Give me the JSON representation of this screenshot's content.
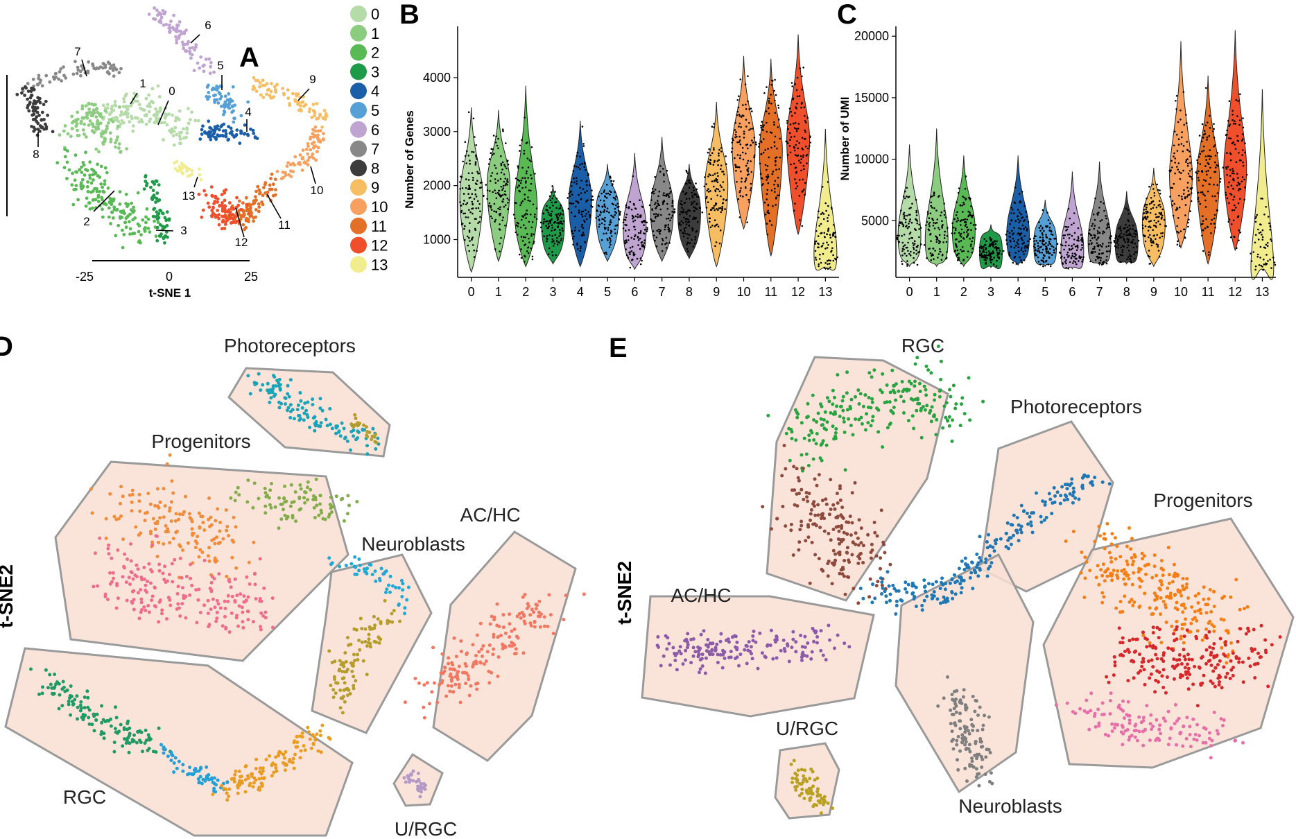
{
  "panels": {
    "A": "A",
    "B": "B",
    "C": "C",
    "D": "D",
    "E": "E"
  },
  "chart_data": [
    {
      "panel": "A",
      "type": "scatter",
      "xlabel": "t-SNE 1",
      "xticks": [
        -25,
        0,
        25
      ],
      "legend_placement": "right",
      "clusters": [
        {
          "id": "0",
          "color": "#b5dba8"
        },
        {
          "id": "1",
          "color": "#8ccc80"
        },
        {
          "id": "2",
          "color": "#58b955"
        },
        {
          "id": "3",
          "color": "#1f9a48"
        },
        {
          "id": "4",
          "color": "#1b5ea8"
        },
        {
          "id": "5",
          "color": "#57a0d6"
        },
        {
          "id": "6",
          "color": "#bfa3d1"
        },
        {
          "id": "7",
          "color": "#888888"
        },
        {
          "id": "8",
          "color": "#3c3c3c"
        },
        {
          "id": "9",
          "color": "#f7bd62"
        },
        {
          "id": "10",
          "color": "#f8a05f"
        },
        {
          "id": "11",
          "color": "#e46f26"
        },
        {
          "id": "12",
          "color": "#f04f2c"
        },
        {
          "id": "13",
          "color": "#f1ec8d"
        }
      ]
    },
    {
      "panel": "B",
      "type": "violin",
      "ylabel": "Number of Genes",
      "categories": [
        "0",
        "1",
        "2",
        "3",
        "4",
        "5",
        "6",
        "7",
        "8",
        "9",
        "10",
        "11",
        "12",
        "13"
      ],
      "yticks": [
        1000,
        2000,
        3000,
        4000
      ],
      "ylim": [
        300,
        4950
      ],
      "median": [
        1800,
        2000,
        1600,
        1300,
        1700,
        1500,
        1200,
        1550,
        1500,
        2000,
        2700,
        2650,
        2850,
        750
      ],
      "min": [
        400,
        600,
        500,
        550,
        500,
        600,
        450,
        600,
        650,
        500,
        1200,
        700,
        1100,
        450
      ],
      "max": [
        3450,
        3400,
        3850,
        2000,
        3200,
        2400,
        2600,
        2900,
        2400,
        3550,
        4400,
        4350,
        4800,
        3050
      ]
    },
    {
      "panel": "C",
      "type": "violin",
      "ylabel": "Number of UMI",
      "categories": [
        "0",
        "1",
        "2",
        "3",
        "4",
        "5",
        "6",
        "7",
        "8",
        "9",
        "10",
        "11",
        "12",
        "13"
      ],
      "yticks": [
        5000,
        10000,
        15000,
        20000
      ],
      "ylim": [
        400,
        20800
      ],
      "median": [
        3800,
        3500,
        4200,
        2500,
        3800,
        3100,
        2600,
        3300,
        3200,
        4800,
        8700,
        8500,
        9300,
        1300
      ],
      "min": [
        1300,
        1300,
        1300,
        1200,
        1400,
        1300,
        1100,
        1400,
        1500,
        1300,
        2800,
        1500,
        2600,
        1000
      ],
      "max": [
        11200,
        12500,
        10300,
        4700,
        10300,
        6700,
        9000,
        9800,
        7400,
        9300,
        19600,
        16800,
        20500,
        15700
      ]
    },
    {
      "panel": "D",
      "type": "scatter",
      "ylabel": "t-SNE2",
      "regions": [
        "Photoreceptors",
        "Progenitors",
        "Neuroblasts",
        "AC/HC",
        "RGC",
        "U/RGC"
      ]
    },
    {
      "panel": "E",
      "type": "scatter",
      "ylabel": "t-SNE2",
      "regions": [
        "RGC",
        "Photoreceptors",
        "Progenitors",
        "AC/HC",
        "U/RGC",
        "Neuroblasts"
      ]
    }
  ]
}
